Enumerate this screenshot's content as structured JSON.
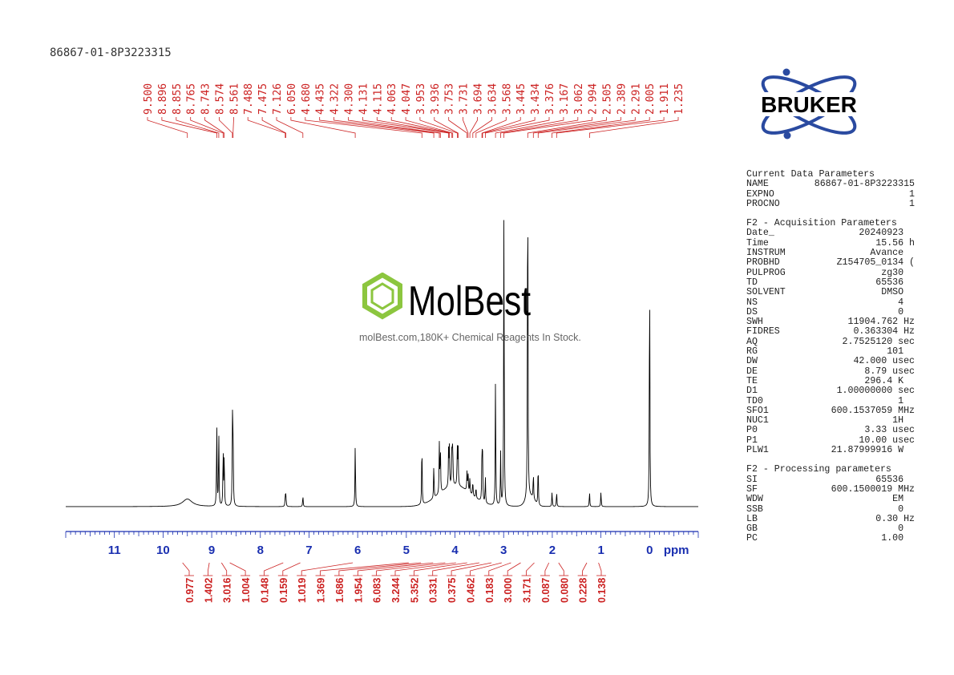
{
  "sample_id": "86867-01-8P3223315",
  "brand": {
    "name": "BRUKER",
    "colors": {
      "ring": "#2a4aa0",
      "text": "#000000"
    }
  },
  "watermark": {
    "name": "MolBest",
    "tagline": "molBest.com,180K+ Chemical Reagents In Stock.",
    "colors": {
      "hexagon": "#8cc63f",
      "text": "#000000"
    }
  },
  "parameters": [
    {
      "title": "Current Data Parameters",
      "rows": [
        {
          "key": "NAME",
          "value": "86867-01-8P3223315"
        },
        {
          "key": "EXPNO",
          "value": "1"
        },
        {
          "key": "PROCNO",
          "value": "1"
        }
      ]
    },
    {
      "title": "F2 - Acquisition Parameters",
      "rows": [
        {
          "key": "Date_",
          "value": "20240923  "
        },
        {
          "key": "Time",
          "value": "15.56 h"
        },
        {
          "key": "INSTRUM",
          "value": "Avance  "
        },
        {
          "key": "PROBHD",
          "value": "Z154705_0134 ("
        },
        {
          "key": "PULPROG",
          "value": "zg30  "
        },
        {
          "key": "TD",
          "value": "65536  "
        },
        {
          "key": "SOLVENT",
          "value": "DMSO  "
        },
        {
          "key": "NS",
          "value": "4  "
        },
        {
          "key": "DS",
          "value": "0  "
        },
        {
          "key": "SWH",
          "value": "11904.762 Hz"
        },
        {
          "key": "FIDRES",
          "value": "0.363304 Hz"
        },
        {
          "key": "AQ",
          "value": "2.7525120 sec"
        },
        {
          "key": "RG",
          "value": "101  "
        },
        {
          "key": "DW",
          "value": "42.000 usec"
        },
        {
          "key": "DE",
          "value": "8.79 usec"
        },
        {
          "key": "TE",
          "value": "296.4 K  "
        },
        {
          "key": "D1",
          "value": "1.00000000 sec"
        },
        {
          "key": "TD0",
          "value": "1  "
        },
        {
          "key": "SFO1",
          "value": "600.1537059 MHz"
        },
        {
          "key": "NUC1",
          "value": "1H  "
        },
        {
          "key": "P0",
          "value": "3.33 usec"
        },
        {
          "key": "P1",
          "value": "10.00 usec"
        },
        {
          "key": "PLW1",
          "value": "21.87999916 W  "
        }
      ]
    },
    {
      "title": "F2 - Processing parameters",
      "rows": [
        {
          "key": "SI",
          "value": "65536  "
        },
        {
          "key": "SF",
          "value": "600.1500019 MHz"
        },
        {
          "key": "WDW",
          "value": "EM  "
        },
        {
          "key": "SSB",
          "value": "0  "
        },
        {
          "key": "LB",
          "value": "0.30 Hz"
        },
        {
          "key": "GB",
          "value": "0  "
        },
        {
          "key": "PC",
          "value": "1.00  "
        }
      ]
    }
  ],
  "chart_data": {
    "type": "line",
    "xlabel": "ppm",
    "xlim": [
      12.0,
      -1.0
    ],
    "x_reversed": true,
    "ticks": [
      11,
      10,
      9,
      8,
      7,
      6,
      5,
      4,
      3,
      2,
      1,
      0
    ],
    "colors": {
      "spectrum": "#000000",
      "axis": "#1a2fb0",
      "labels": "#cc2222"
    },
    "peak_labels": [
      "9.500",
      "8.896",
      "8.855",
      "8.765",
      "8.743",
      "8.574",
      "8.561",
      "7.488",
      "7.475",
      "7.126",
      "6.050",
      "4.680",
      "4.435",
      "4.322",
      "4.300",
      "4.131",
      "4.115",
      "4.063",
      "4.047",
      "3.953",
      "3.936",
      "3.753",
      "3.731",
      "3.694",
      "3.634",
      "3.568",
      "3.445",
      "3.434",
      "3.376",
      "3.167",
      "3.062",
      "2.994",
      "2.505",
      "2.389",
      "2.291",
      "2.005",
      "1.911",
      "1.235"
    ],
    "peaks": [
      {
        "ppm": 9.5,
        "height": 0.02
      },
      {
        "ppm": 8.896,
        "height": 0.22
      },
      {
        "ppm": 8.855,
        "height": 0.2
      },
      {
        "ppm": 8.765,
        "height": 0.15
      },
      {
        "ppm": 8.743,
        "height": 0.14
      },
      {
        "ppm": 8.574,
        "height": 0.22
      },
      {
        "ppm": 8.561,
        "height": 0.2
      },
      {
        "ppm": 7.488,
        "height": 0.03
      },
      {
        "ppm": 7.475,
        "height": 0.03
      },
      {
        "ppm": 7.126,
        "height": 0.03
      },
      {
        "ppm": 6.05,
        "height": 0.17
      },
      {
        "ppm": 4.68,
        "height": 0.17
      },
      {
        "ppm": 4.435,
        "height": 0.09
      },
      {
        "ppm": 4.322,
        "height": 0.13
      },
      {
        "ppm": 4.3,
        "height": 0.12
      },
      {
        "ppm": 4.131,
        "height": 0.1
      },
      {
        "ppm": 4.115,
        "height": 0.1
      },
      {
        "ppm": 4.063,
        "height": 0.12
      },
      {
        "ppm": 4.047,
        "height": 0.11
      },
      {
        "ppm": 3.953,
        "height": 0.1
      },
      {
        "ppm": 3.936,
        "height": 0.1
      },
      {
        "ppm": 3.753,
        "height": 0.05
      },
      {
        "ppm": 3.731,
        "height": 0.05
      },
      {
        "ppm": 3.694,
        "height": 0.04
      },
      {
        "ppm": 3.634,
        "height": 0.04
      },
      {
        "ppm": 3.568,
        "height": 0.03
      },
      {
        "ppm": 3.445,
        "height": 0.13
      },
      {
        "ppm": 3.434,
        "height": 0.12
      },
      {
        "ppm": 3.376,
        "height": 0.07
      },
      {
        "ppm": 3.167,
        "height": 0.34
      },
      {
        "ppm": 3.062,
        "height": 0.14
      },
      {
        "ppm": 2.994,
        "height": 0.8
      },
      {
        "ppm": 2.505,
        "height": 0.95
      },
      {
        "ppm": 2.389,
        "height": 0.07
      },
      {
        "ppm": 2.291,
        "height": 0.11
      },
      {
        "ppm": 2.005,
        "height": 0.04
      },
      {
        "ppm": 1.911,
        "height": 0.04
      },
      {
        "ppm": 1.235,
        "height": 0.04
      },
      {
        "ppm": 1.0,
        "height": 0.04
      },
      {
        "ppm": 0.0,
        "height": 0.66
      }
    ],
    "integrals": [
      {
        "ppm": 9.55,
        "value": "0.977"
      },
      {
        "ppm": 9.0,
        "value": "1.402"
      },
      {
        "ppm": 8.75,
        "value": "3.016"
      },
      {
        "ppm": 8.58,
        "value": "1.004"
      },
      {
        "ppm": 7.48,
        "value": "0.148"
      },
      {
        "ppm": 7.13,
        "value": "0.159"
      },
      {
        "ppm": 6.05,
        "value": "1.019"
      },
      {
        "ppm": 4.9,
        "value": "1.369"
      },
      {
        "ppm": 4.65,
        "value": "1.686"
      },
      {
        "ppm": 4.4,
        "value": "1.954"
      },
      {
        "ppm": 4.15,
        "value": "6.083"
      },
      {
        "ppm": 3.93,
        "value": "3.244"
      },
      {
        "ppm": 3.7,
        "value": "5.352"
      },
      {
        "ppm": 3.45,
        "value": "0.331"
      },
      {
        "ppm": 3.2,
        "value": "0.375"
      },
      {
        "ppm": 2.99,
        "value": "0.462"
      },
      {
        "ppm": 2.8,
        "value": "0.183"
      },
      {
        "ppm": 2.6,
        "value": "3.000"
      },
      {
        "ppm": 2.32,
        "value": "3.171"
      },
      {
        "ppm": 2.02,
        "value": "0.087"
      },
      {
        "ppm": 1.82,
        "value": "0.080"
      },
      {
        "ppm": 1.24,
        "value": "0.228"
      },
      {
        "ppm": 1.0,
        "value": "0.138"
      }
    ]
  }
}
